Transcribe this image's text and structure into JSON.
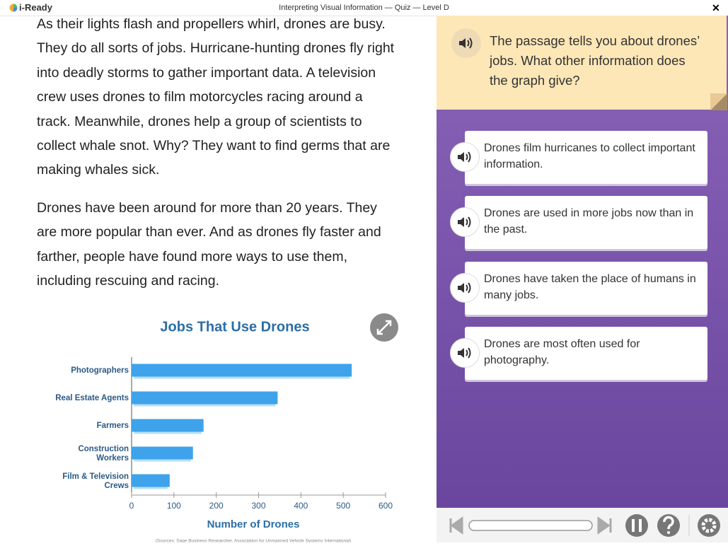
{
  "header": {
    "logo": "i-Ready",
    "title": "Interpreting Visual Information — Quiz — Level D",
    "close": "✕"
  },
  "passage": {
    "paragraphs": [
      [
        "As their lights flash and propellers whirl, drones are busy.",
        "They do all sorts of jobs. Hurricane-hunting drones fly right",
        "into deadly storms to gather important data. A television",
        "crew uses drones to film motorcycles racing around a",
        "track. Meanwhile, drones help a group of scientists to",
        "collect whale snot. Why? They want to find germs that are",
        "making whales sick."
      ],
      [
        "Drones have been around for more than 20 years. They",
        "are more popular than ever. And as drones fly faster and",
        "farther, people have found more ways to use them,",
        "including rescuing and racing."
      ]
    ]
  },
  "chart_data": {
    "type": "hbar",
    "title": "Jobs That Use Drones",
    "categories": [
      "Photographers",
      "Real Estate Agents",
      "Farmers",
      "Construction Workers",
      "Film & Television Crews"
    ],
    "values": [
      520,
      345,
      170,
      145,
      90
    ],
    "color": "#3ea3ea",
    "xlim": [
      0,
      600
    ],
    "xticks": [
      0,
      100,
      200,
      300,
      400,
      500,
      600
    ],
    "xlabel": "Number of Drones",
    "source": "(Sources: Sage Business Researcher, Association for Unmanned Vehicle Systems International)"
  },
  "question": {
    "text": "The passage tells you about drones’ jobs. What other information does the graph give?",
    "choices": [
      "Drones film hurricanes to collect important information.",
      "Drones are used in more jobs now than in the past.",
      "Drones have taken the place of humans in many jobs.",
      "Drones are most often used for photography."
    ]
  }
}
